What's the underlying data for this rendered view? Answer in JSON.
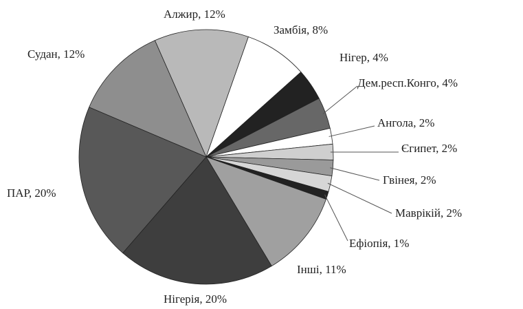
{
  "chart_data": {
    "type": "pie",
    "values": [
      12,
      8,
      4,
      4,
      2,
      2,
      2,
      2,
      1,
      11,
      20,
      20,
      12
    ],
    "value_labels": [
      "Алжир, 12%",
      "Замбія, 8%",
      "Нігер, 4%",
      "Дем.респ.Конго, 4%",
      "Ангола, 2%",
      "Єгипет, 2%",
      "Гвінея, 2%",
      "Маврікій, 2%",
      "Ефіопія, 1%",
      "Інші, 11%",
      "Нігерія, 20%",
      "ПАР, 20%",
      "Судан, 12%"
    ],
    "colors": [
      "#b9b9b9",
      "#ffffff",
      "#222222",
      "#676767",
      "#ffffff",
      "#cfcfcf",
      "#9a9a9a",
      "#d6d6d6",
      "#222222",
      "#a0a0a0",
      "#3e3e3e",
      "#585858",
      "#8e8e8e"
    ]
  }
}
